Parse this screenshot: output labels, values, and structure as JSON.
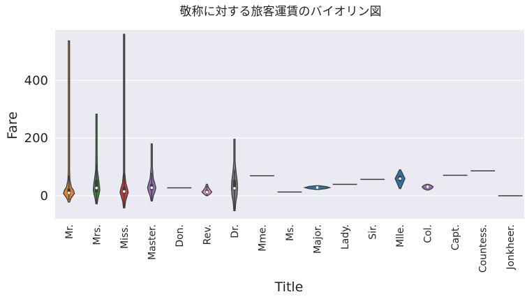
{
  "chart_data": {
    "type": "violin",
    "title": "敬称に対する旅客運賃のバイオリン図",
    "xlabel": "Title",
    "ylabel": "Fare",
    "ylim": [
      -80,
      575
    ],
    "yticks": [
      0,
      200,
      400
    ],
    "grid": true,
    "background": "#eaeaf2",
    "categories": [
      {
        "name": "Mr.",
        "color": "#e1812c",
        "min": -15,
        "max": 537,
        "q1": 5,
        "median": 10,
        "q3": 25,
        "whisker_low": -15,
        "whisker_high": 70,
        "shape": [
          [
            -22,
            0.1
          ],
          [
            -10,
            0.35
          ],
          [
            0,
            0.7
          ],
          [
            8,
            1.0
          ],
          [
            18,
            0.85
          ],
          [
            30,
            0.45
          ],
          [
            55,
            0.18
          ],
          [
            90,
            0.06
          ],
          [
            200,
            0.03
          ],
          [
            537,
            0.02
          ]
        ]
      },
      {
        "name": "Mrs.",
        "color": "#3a923a",
        "min": -25,
        "max": 283,
        "q1": 12,
        "median": 27,
        "q3": 55,
        "whisker_low": -25,
        "whisker_high": 110,
        "shape": [
          [
            -28,
            0.08
          ],
          [
            -10,
            0.25
          ],
          [
            5,
            0.45
          ],
          [
            20,
            0.6
          ],
          [
            40,
            0.5
          ],
          [
            60,
            0.35
          ],
          [
            90,
            0.15
          ],
          [
            150,
            0.05
          ],
          [
            283,
            0.02
          ]
        ]
      },
      {
        "name": "Miss.",
        "color": "#c03d3e",
        "min": -40,
        "max": 560,
        "q1": 8,
        "median": 15,
        "q3": 30,
        "whisker_low": -40,
        "whisker_high": 80,
        "shape": [
          [
            -42,
            0.06
          ],
          [
            -20,
            0.25
          ],
          [
            0,
            0.55
          ],
          [
            12,
            0.75
          ],
          [
            25,
            0.6
          ],
          [
            45,
            0.3
          ],
          [
            80,
            0.1
          ],
          [
            200,
            0.03
          ],
          [
            560,
            0.02
          ]
        ]
      },
      {
        "name": "Master.",
        "color": "#9372b2",
        "min": -15,
        "max": 180,
        "q1": 20,
        "median": 28,
        "q3": 40,
        "whisker_low": -15,
        "whisker_high": 80,
        "shape": [
          [
            -18,
            0.08
          ],
          [
            0,
            0.3
          ],
          [
            15,
            0.6
          ],
          [
            28,
            0.75
          ],
          [
            40,
            0.6
          ],
          [
            60,
            0.3
          ],
          [
            100,
            0.08
          ],
          [
            180,
            0.03
          ]
        ]
      },
      {
        "name": "Don.",
        "color": "#845b53",
        "min": 27.7,
        "max": 27.7,
        "median": 27.7,
        "flat": true
      },
      {
        "name": "Rev.",
        "color": "#d684bd",
        "min": 0,
        "max": 40,
        "q1": 10,
        "median": 13,
        "q3": 20,
        "whisker_low": 0,
        "whisker_high": 35,
        "shape": [
          [
            0,
            0.1
          ],
          [
            6,
            0.55
          ],
          [
            13,
            0.9
          ],
          [
            20,
            0.6
          ],
          [
            30,
            0.25
          ],
          [
            40,
            0.05
          ]
        ]
      },
      {
        "name": "Dr.",
        "color": "#7f7f7f",
        "min": -50,
        "max": 196,
        "q1": 20,
        "median": 26,
        "q3": 55,
        "whisker_low": -50,
        "whisker_high": 90,
        "shape": [
          [
            -52,
            0.05
          ],
          [
            -20,
            0.25
          ],
          [
            0,
            0.45
          ],
          [
            25,
            0.55
          ],
          [
            50,
            0.5
          ],
          [
            80,
            0.3
          ],
          [
            120,
            0.1
          ],
          [
            196,
            0.03
          ]
        ]
      },
      {
        "name": "Mme.",
        "color": "#a9aa35",
        "min": 69.3,
        "max": 69.3,
        "median": 69.3,
        "flat": true
      },
      {
        "name": "Ms.",
        "color": "#2ebece",
        "min": 13,
        "max": 13,
        "median": 13,
        "flat": true
      },
      {
        "name": "Major.",
        "color": "#3274a1",
        "min": 26.55,
        "max": 30.5,
        "q1": 27,
        "median": 28.5,
        "q3": 30,
        "whisker_low": 26.55,
        "whisker_high": 30.5,
        "shape": [
          [
            22,
            0.15
          ],
          [
            25,
            0.7
          ],
          [
            28.5,
            1.0
          ],
          [
            32,
            0.7
          ],
          [
            35,
            0.15
          ]
        ],
        "wide": true
      },
      {
        "name": "Lady.",
        "color": "#e1812c",
        "min": 39.6,
        "max": 39.6,
        "median": 39.6,
        "flat": true
      },
      {
        "name": "Sir.",
        "color": "#3a923a",
        "min": 56.9,
        "max": 56.9,
        "median": 56.9,
        "flat": true
      },
      {
        "name": "Mlle.",
        "color": "#3274a1",
        "min": 25,
        "max": 90,
        "q1": 50,
        "median": 59.4,
        "q3": 69,
        "whisker_low": 49.5,
        "whisker_high": 69.3,
        "shape": [
          [
            25,
            0.05
          ],
          [
            40,
            0.45
          ],
          [
            59.4,
            0.9
          ],
          [
            75,
            0.5
          ],
          [
            90,
            0.05
          ]
        ]
      },
      {
        "name": "Col.",
        "color": "#9372b2",
        "min": 20,
        "max": 40,
        "q1": 27,
        "median": 31,
        "q3": 35,
        "whisker_low": 26.55,
        "whisker_high": 35.5,
        "shape": [
          [
            20,
            0.2
          ],
          [
            25,
            0.75
          ],
          [
            31,
            1.0
          ],
          [
            36,
            0.7
          ],
          [
            40,
            0.2
          ]
        ]
      },
      {
        "name": "Capt.",
        "color": "#845b53",
        "min": 71,
        "max": 71,
        "median": 71,
        "flat": true
      },
      {
        "name": "Countess.",
        "color": "#d684bd",
        "min": 86.5,
        "max": 86.5,
        "median": 86.5,
        "flat": true
      },
      {
        "name": "Jonkheer.",
        "color": "#7f7f7f",
        "min": 0,
        "max": 0,
        "median": 0,
        "flat": true
      }
    ]
  }
}
